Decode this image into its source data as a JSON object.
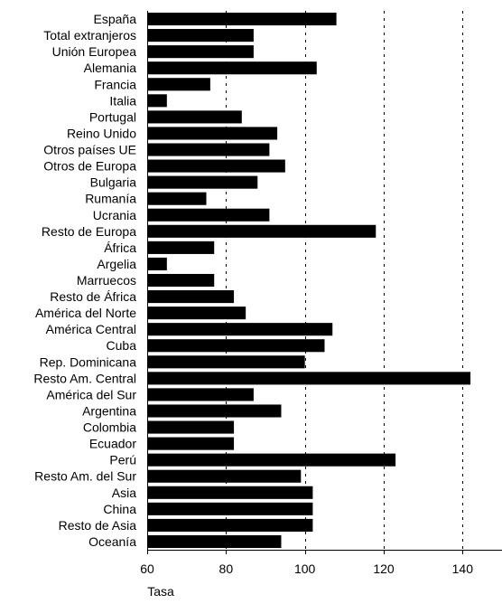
{
  "chart_data": {
    "type": "bar",
    "orientation": "horizontal",
    "title": "",
    "xlabel": "Tasa",
    "ylabel": "",
    "xlim": [
      60,
      150
    ],
    "xticks": [
      60,
      80,
      100,
      120,
      140
    ],
    "grid": "vertical dotted",
    "bar_color": "#000000",
    "categories": [
      "España",
      "Total extranjeros",
      "Unión Europea",
      "Alemania",
      "Francia",
      "Italia",
      "Portugal",
      "Reino Unido",
      "Otros países UE",
      "Otros de Europa",
      "Bulgaria",
      "Rumanía",
      "Ucrania",
      "Resto de Europa",
      "África",
      "Argelia",
      "Marruecos",
      "Resto de África",
      "América del Norte",
      "América Central",
      "Cuba",
      "Rep. Dominicana",
      "Resto Am. Central",
      "América del Sur",
      "Argentina",
      "Colombia",
      "Ecuador",
      "Perú",
      "Resto Am. del Sur",
      "Asia",
      "China",
      "Resto de Asia",
      "Oceanía"
    ],
    "values": [
      108,
      87,
      87,
      103,
      76,
      65,
      84,
      93,
      91,
      95,
      88,
      75,
      91,
      118,
      77,
      65,
      77,
      82,
      85,
      107,
      105,
      100,
      142,
      87,
      94,
      82,
      82,
      123,
      99,
      102,
      102,
      102,
      94
    ]
  }
}
